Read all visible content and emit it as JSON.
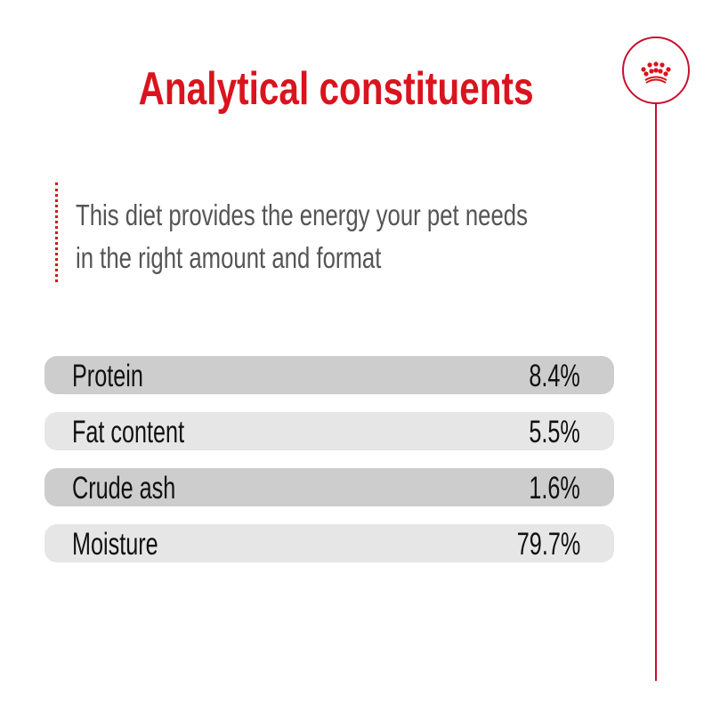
{
  "title": "Analytical constituents",
  "description": [
    "This diet provides the energy your pet needs",
    "in the right amount and format"
  ],
  "constituents": [
    {
      "label": "Protein",
      "value": "8.4%"
    },
    {
      "label": "Fat content",
      "value": "5.5%"
    },
    {
      "label": "Crude ash",
      "value": "1.6%"
    },
    {
      "label": "Moisture",
      "value": "79.7%"
    }
  ],
  "colors": {
    "accent": "#d9141e",
    "row_dark": "#cdcdcd",
    "row_light": "#e6e6e6"
  },
  "logo": "crown-icon"
}
